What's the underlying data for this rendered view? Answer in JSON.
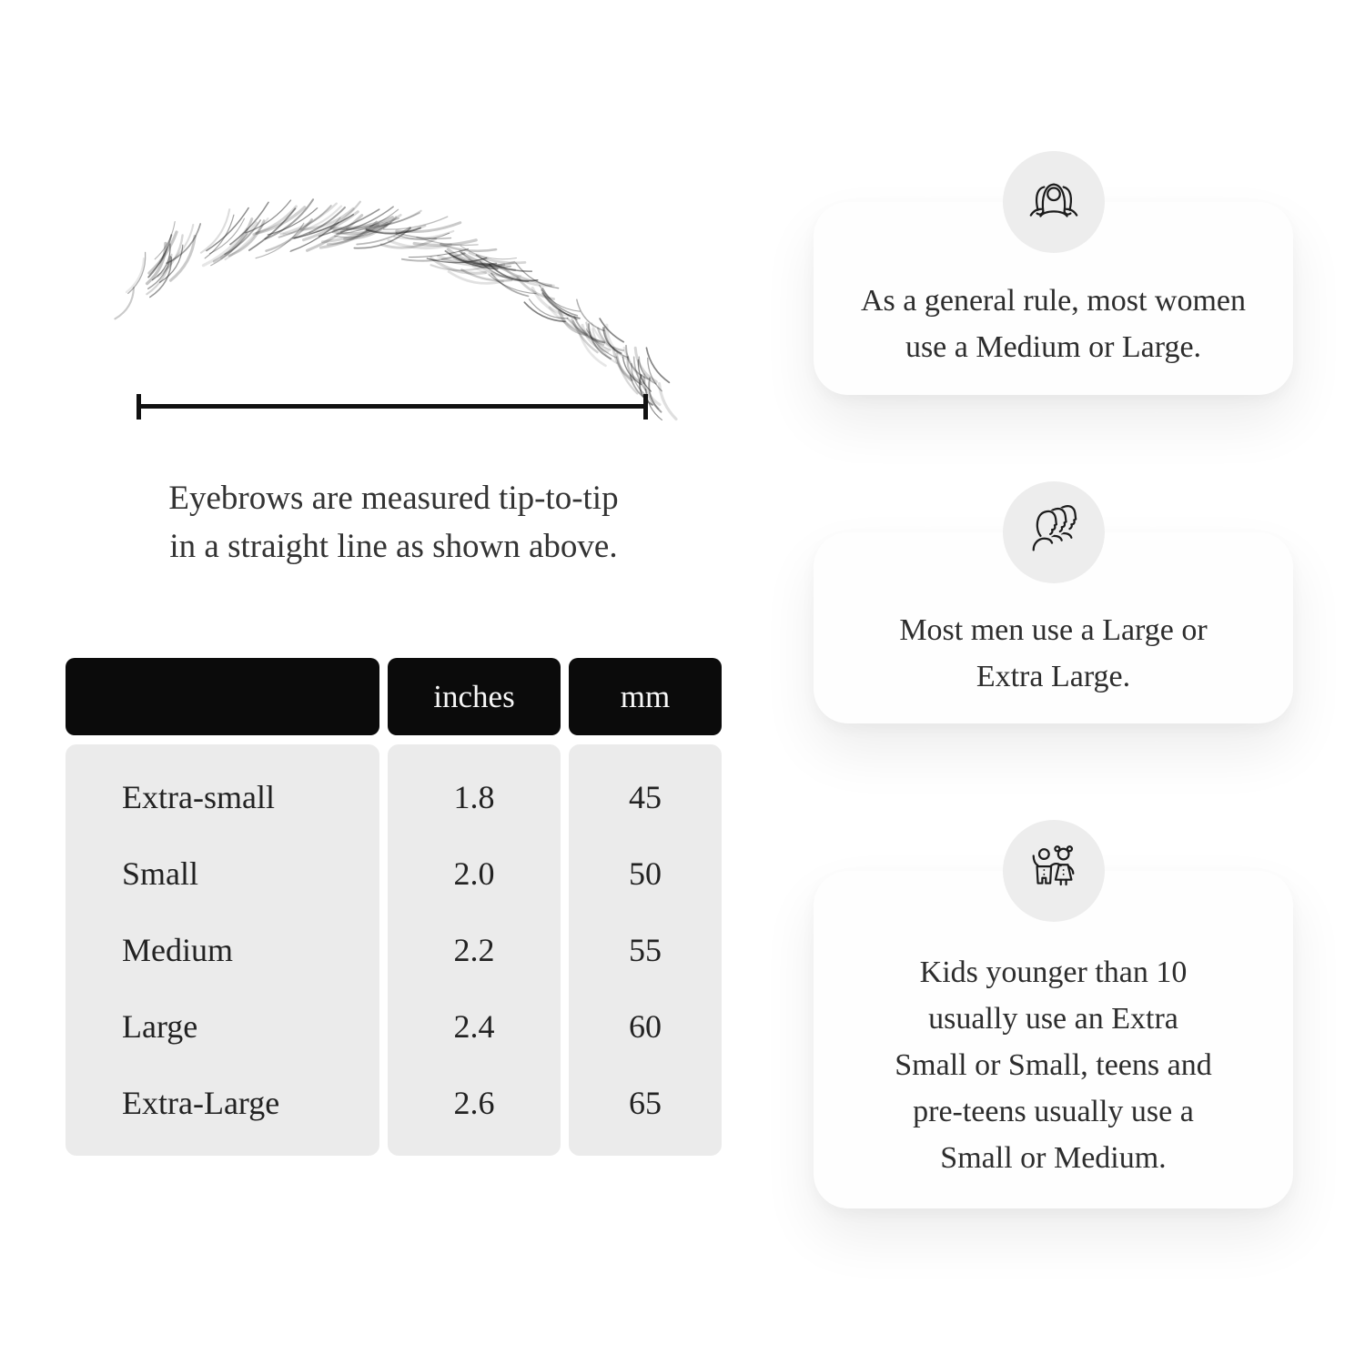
{
  "diagram": {
    "caption_lines": [
      "Eyebrows are measured tip-to-tip",
      "in a straight line as shown above."
    ]
  },
  "table": {
    "headers": {
      "size": "",
      "inches": "inches",
      "mm": "mm"
    },
    "rows": [
      {
        "size": "Extra-small",
        "inches": "1.8",
        "mm": "45"
      },
      {
        "size": "Small",
        "inches": "2.0",
        "mm": "50"
      },
      {
        "size": "Medium",
        "inches": "2.2",
        "mm": "55"
      },
      {
        "size": "Large",
        "inches": "2.4",
        "mm": "60"
      },
      {
        "size": "Extra-Large",
        "inches": "2.6",
        "mm": "65"
      }
    ],
    "colors": {
      "header_bg": "#0b0b0b",
      "header_text": "#f7f7f7",
      "body_bg": "#ebebeb",
      "text": "#222222"
    }
  },
  "cards": [
    {
      "icon": "women-group-icon",
      "lines": [
        "As a general rule, most women",
        "use a Medium or Large."
      ]
    },
    {
      "icon": "men-group-icon",
      "lines": [
        "Most men use a Large or",
        "Extra Large."
      ]
    },
    {
      "icon": "kids-icon",
      "lines": [
        "Kids younger than 10",
        "usually use an Extra",
        "Small or Small, teens and",
        "pre-teens usually use a",
        "Small or Medium."
      ]
    }
  ]
}
